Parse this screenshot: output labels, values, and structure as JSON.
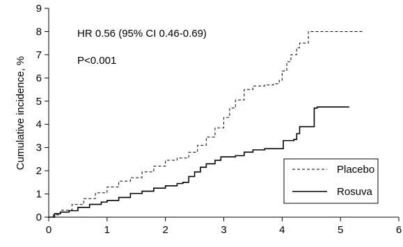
{
  "chart_data": {
    "type": "line",
    "title": "",
    "xlabel": "",
    "ylabel": "Cumulative incidence, %",
    "xlim": [
      0,
      6
    ],
    "ylim": [
      0,
      9
    ],
    "x_ticks": [
      "0",
      "1",
      "2",
      "3",
      "4",
      "5",
      "6"
    ],
    "y_ticks": [
      "0",
      "1",
      "2",
      "3",
      "4",
      "5",
      "6",
      "7",
      "8",
      "9"
    ],
    "grid": false,
    "legend_position": "bottom-right",
    "annotations": [
      "HR 0.56 (95% CI 0.46-0.69)",
      "P<0.001"
    ],
    "series": [
      {
        "name": "Placebo",
        "line_style": "dashed",
        "color": "#000000",
        "points": [
          [
            0,
            0
          ],
          [
            0.08,
            0.1
          ],
          [
            0.2,
            0.3
          ],
          [
            0.4,
            0.55
          ],
          [
            0.6,
            0.8
          ],
          [
            0.8,
            1.05
          ],
          [
            1.0,
            1.3
          ],
          [
            1.2,
            1.55
          ],
          [
            1.4,
            1.7
          ],
          [
            1.6,
            1.95
          ],
          [
            1.8,
            2.2
          ],
          [
            2.0,
            2.45
          ],
          [
            2.2,
            2.55
          ],
          [
            2.4,
            2.8
          ],
          [
            2.55,
            3.1
          ],
          [
            2.7,
            3.45
          ],
          [
            2.85,
            3.85
          ],
          [
            3.0,
            4.3
          ],
          [
            3.1,
            4.7
          ],
          [
            3.2,
            5.05
          ],
          [
            3.35,
            5.5
          ],
          [
            3.5,
            5.65
          ],
          [
            3.7,
            5.7
          ],
          [
            3.85,
            5.75
          ],
          [
            3.95,
            5.9
          ],
          [
            4.0,
            6.3
          ],
          [
            4.08,
            6.7
          ],
          [
            4.15,
            7.0
          ],
          [
            4.25,
            7.3
          ],
          [
            4.3,
            7.5
          ],
          [
            4.4,
            7.5
          ],
          [
            4.45,
            8.0
          ],
          [
            5.4,
            8.0
          ]
        ]
      },
      {
        "name": "Rosuva",
        "line_style": "solid",
        "color": "#000000",
        "points": [
          [
            0,
            0
          ],
          [
            0.1,
            0.15
          ],
          [
            0.2,
            0.22
          ],
          [
            0.35,
            0.28
          ],
          [
            0.5,
            0.42
          ],
          [
            0.7,
            0.55
          ],
          [
            0.9,
            0.65
          ],
          [
            1.0,
            0.72
          ],
          [
            1.2,
            0.85
          ],
          [
            1.4,
            1.02
          ],
          [
            1.6,
            1.12
          ],
          [
            1.8,
            1.25
          ],
          [
            2.0,
            1.35
          ],
          [
            2.2,
            1.45
          ],
          [
            2.3,
            1.5
          ],
          [
            2.4,
            1.75
          ],
          [
            2.5,
            1.95
          ],
          [
            2.6,
            2.15
          ],
          [
            2.7,
            2.3
          ],
          [
            2.85,
            2.45
          ],
          [
            2.95,
            2.6
          ],
          [
            3.2,
            2.65
          ],
          [
            3.35,
            2.8
          ],
          [
            3.5,
            2.9
          ],
          [
            3.7,
            2.95
          ],
          [
            3.85,
            2.95
          ],
          [
            4.0,
            2.95
          ],
          [
            4.02,
            3.3
          ],
          [
            4.2,
            3.35
          ],
          [
            4.25,
            3.6
          ],
          [
            4.3,
            3.9
          ],
          [
            4.5,
            3.9
          ],
          [
            4.55,
            4.7
          ],
          [
            4.6,
            4.75
          ],
          [
            5.15,
            4.75
          ]
        ]
      }
    ]
  }
}
